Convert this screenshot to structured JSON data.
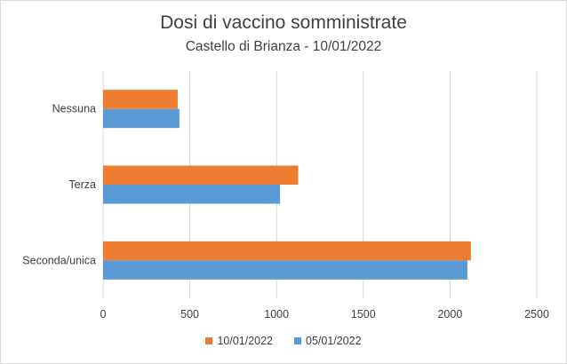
{
  "chart_data": {
    "type": "bar",
    "orientation": "horizontal",
    "title": "Dosi di vaccino somministrate",
    "subtitle": "Castello di Brianza - 10/01/2022",
    "categories": [
      "Nessuna",
      "Terza",
      "Seconda/unica"
    ],
    "series": [
      {
        "name": "10/01/2022",
        "color": "#ED7D31",
        "values": [
          430,
          1125,
          2120
        ]
      },
      {
        "name": "05/01/2022",
        "color": "#5B9BD5",
        "values": [
          440,
          1020,
          2100
        ]
      }
    ],
    "xlim": [
      0,
      2500
    ],
    "xticks": [
      "0",
      "500",
      "1000",
      "1500",
      "2000",
      "2500"
    ],
    "grid": "vertical",
    "legend": "bottom"
  }
}
